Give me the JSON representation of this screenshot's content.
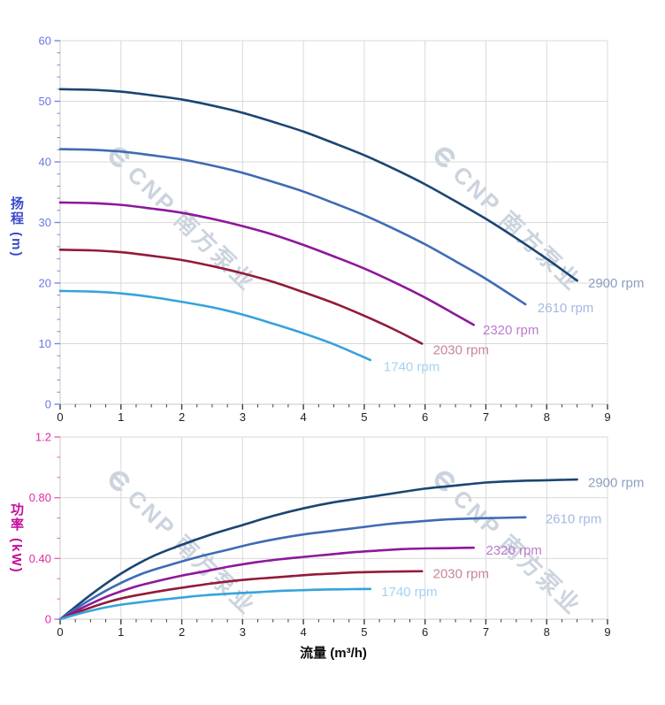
{
  "watermark": {
    "text": "CNP 南方泵业"
  },
  "chart_data": [
    {
      "name": "head-curve-chart",
      "type": "line",
      "title": "",
      "xlabel": "流量 (m³/h)",
      "ylabel": "扬程 (m)",
      "xlim": [
        0,
        9
      ],
      "ylim": [
        0,
        60
      ],
      "grid": true,
      "legend_position": "inline-right-of-curves",
      "x_ticks": [
        0,
        1,
        2,
        3,
        4,
        5,
        6,
        7,
        8,
        9
      ],
      "x_tick_labels": [
        "0",
        "1",
        "2",
        "3",
        "4",
        "5",
        "6",
        "7",
        "8",
        "9"
      ],
      "x_minor_per": 4,
      "y_ticks": [
        0,
        10,
        20,
        30,
        40,
        50,
        60
      ],
      "y_tick_labels": [
        "0",
        "10",
        "20",
        "30",
        "40",
        "50",
        "60"
      ],
      "y_minor_per": 5,
      "style": {
        "grid": "#d9d9d9",
        "axis_line": "#d2d2d2",
        "x_tick": "#3c3c3c",
        "x_label": "#1f1f1f",
        "y_tick": "#7b86e0",
        "y_label": "#6b77e2",
        "y_title": "#3a48cc"
      },
      "series": [
        {
          "name": "2900 rpm",
          "color": "#1a4672",
          "label_color": "#8a9fc0",
          "label_at": [
            8.68,
            20.0
          ],
          "points": [
            [
              0,
              52
            ],
            [
              0.5,
              51.9
            ],
            [
              1,
              51.6
            ],
            [
              1.5,
              51.0
            ],
            [
              2,
              50.3
            ],
            [
              2.5,
              49.3
            ],
            [
              3,
              48.1
            ],
            [
              3.5,
              46.6
            ],
            [
              4,
              45.0
            ],
            [
              4.5,
              43.1
            ],
            [
              5,
              41.1
            ],
            [
              5.5,
              38.8
            ],
            [
              6,
              36.3
            ],
            [
              6.5,
              33.5
            ],
            [
              7,
              30.6
            ],
            [
              7.5,
              27.4
            ],
            [
              8,
              24.0
            ],
            [
              8.5,
              20.4
            ]
          ]
        },
        {
          "name": "2610 rpm",
          "color": "#3e6bb5",
          "label_color": "#a5b9e2",
          "label_at": [
            7.85,
            15.9
          ],
          "points": [
            [
              0,
              42.1
            ],
            [
              0.5,
              42.0
            ],
            [
              1,
              41.7
            ],
            [
              1.5,
              41.1
            ],
            [
              2,
              40.4
            ],
            [
              2.5,
              39.4
            ],
            [
              3,
              38.2
            ],
            [
              3.5,
              36.7
            ],
            [
              4,
              35.1
            ],
            [
              4.5,
              33.2
            ],
            [
              5,
              31.2
            ],
            [
              5.5,
              28.9
            ],
            [
              6,
              26.4
            ],
            [
              6.5,
              23.6
            ],
            [
              7,
              20.7
            ],
            [
              7.65,
              16.5
            ]
          ]
        },
        {
          "name": "2320 rpm",
          "color": "#8d189b",
          "label_color": "#bd7bcc",
          "label_at": [
            6.95,
            12.3
          ],
          "points": [
            [
              0,
              33.3
            ],
            [
              0.5,
              33.2
            ],
            [
              1,
              32.9
            ],
            [
              1.5,
              32.3
            ],
            [
              2,
              31.6
            ],
            [
              2.5,
              30.6
            ],
            [
              3,
              29.4
            ],
            [
              3.5,
              28.0
            ],
            [
              4,
              26.3
            ],
            [
              4.5,
              24.4
            ],
            [
              5,
              22.4
            ],
            [
              5.5,
              20.1
            ],
            [
              6,
              17.6
            ],
            [
              6.5,
              14.8
            ],
            [
              6.8,
              13.1
            ]
          ]
        },
        {
          "name": "2030 rpm",
          "color": "#921b39",
          "label_color": "#c58794",
          "label_at": [
            6.13,
            9.0
          ],
          "points": [
            [
              0,
              25.5
            ],
            [
              0.5,
              25.4
            ],
            [
              1,
              25.1
            ],
            [
              1.5,
              24.5
            ],
            [
              2,
              23.8
            ],
            [
              2.5,
              22.8
            ],
            [
              3,
              21.6
            ],
            [
              3.5,
              20.2
            ],
            [
              4,
              18.5
            ],
            [
              4.5,
              16.7
            ],
            [
              5,
              14.6
            ],
            [
              5.5,
              12.3
            ],
            [
              5.95,
              10.0
            ]
          ]
        },
        {
          "name": "1740 rpm",
          "color": "#35a3dc",
          "label_color": "#a3d3f0",
          "label_at": [
            5.32,
            6.2
          ],
          "points": [
            [
              0,
              18.7
            ],
            [
              0.5,
              18.6
            ],
            [
              1,
              18.3
            ],
            [
              1.5,
              17.7
            ],
            [
              2,
              16.9
            ],
            [
              2.5,
              16.0
            ],
            [
              3,
              14.8
            ],
            [
              3.5,
              13.3
            ],
            [
              4,
              11.7
            ],
            [
              4.5,
              9.9
            ],
            [
              5.1,
              7.3
            ]
          ]
        }
      ]
    },
    {
      "name": "power-curve-chart",
      "type": "line",
      "title": "",
      "xlabel": "流量 (m³/h)",
      "ylabel": "功率 (kW)",
      "xlim": [
        0,
        9
      ],
      "ylim": [
        0,
        1.2
      ],
      "grid": true,
      "legend_position": "inline-right-of-curves",
      "x_ticks": [
        0,
        1,
        2,
        3,
        4,
        5,
        6,
        7,
        8,
        9
      ],
      "x_tick_labels": [
        "0",
        "1",
        "2",
        "3",
        "4",
        "5",
        "6",
        "7",
        "8",
        "9"
      ],
      "x_minor_per": 4,
      "y_ticks": [
        0,
        0.4,
        0.8,
        1.2
      ],
      "y_tick_labels": [
        "0",
        "0.40",
        "0.80",
        "1.2"
      ],
      "y_minor_per": 3,
      "style": {
        "grid": "#d9d9d9",
        "axis_line": "#d2d2d2",
        "x_tick": "#3c3c3c",
        "x_label": "#1f1f1f",
        "y_tick": "#ea5fbe",
        "y_label": "#df2aa6",
        "y_title": "#c40d9b"
      },
      "series": [
        {
          "name": "2900 rpm",
          "color": "#1a4672",
          "label_color": "#8a9fc0",
          "label_at": [
            8.68,
            0.9
          ],
          "points": [
            [
              0,
              0
            ],
            [
              0.5,
              0.16
            ],
            [
              1,
              0.3
            ],
            [
              1.5,
              0.41
            ],
            [
              2,
              0.49
            ],
            [
              2.5,
              0.56
            ],
            [
              3,
              0.62
            ],
            [
              3.5,
              0.68
            ],
            [
              4,
              0.73
            ],
            [
              4.5,
              0.77
            ],
            [
              5,
              0.8
            ],
            [
              5.5,
              0.83
            ],
            [
              6,
              0.86
            ],
            [
              6.5,
              0.88
            ],
            [
              7,
              0.9
            ],
            [
              7.5,
              0.91
            ],
            [
              8,
              0.915
            ],
            [
              8.5,
              0.92
            ]
          ]
        },
        {
          "name": "2610 rpm",
          "color": "#3e6bb5",
          "label_color": "#a5b9e2",
          "label_at": [
            7.98,
            0.66
          ],
          "points": [
            [
              0,
              0
            ],
            [
              0.45,
              0.117
            ],
            [
              0.9,
              0.219
            ],
            [
              1.35,
              0.3
            ],
            [
              1.8,
              0.357
            ],
            [
              2.25,
              0.408
            ],
            [
              2.7,
              0.452
            ],
            [
              3.15,
              0.496
            ],
            [
              3.6,
              0.532
            ],
            [
              4.05,
              0.561
            ],
            [
              4.5,
              0.583
            ],
            [
              4.95,
              0.605
            ],
            [
              5.4,
              0.627
            ],
            [
              5.85,
              0.642
            ],
            [
              6.3,
              0.656
            ],
            [
              6.75,
              0.663
            ],
            [
              7.2,
              0.667
            ],
            [
              7.65,
              0.671
            ]
          ]
        },
        {
          "name": "2320 rpm",
          "color": "#8d189b",
          "label_color": "#bd7bcc",
          "label_at": [
            7.0,
            0.455
          ],
          "points": [
            [
              0,
              0
            ],
            [
              0.4,
              0.082
            ],
            [
              0.8,
              0.154
            ],
            [
              1.2,
              0.21
            ],
            [
              1.6,
              0.251
            ],
            [
              2,
              0.287
            ],
            [
              2.4,
              0.317
            ],
            [
              2.8,
              0.348
            ],
            [
              3.2,
              0.374
            ],
            [
              3.6,
              0.394
            ],
            [
              4,
              0.41
            ],
            [
              4.4,
              0.425
            ],
            [
              4.8,
              0.44
            ],
            [
              5.2,
              0.451
            ],
            [
              5.6,
              0.461
            ],
            [
              6,
              0.466
            ],
            [
              6.4,
              0.468
            ],
            [
              6.8,
              0.471
            ]
          ]
        },
        {
          "name": "2030 rpm",
          "color": "#921b39",
          "label_color": "#c58794",
          "label_at": [
            6.13,
            0.3
          ],
          "points": [
            [
              0,
              0
            ],
            [
              0.35,
              0.055
            ],
            [
              0.7,
              0.103
            ],
            [
              1.05,
              0.141
            ],
            [
              1.4,
              0.168
            ],
            [
              1.75,
              0.192
            ],
            [
              2.1,
              0.213
            ],
            [
              2.45,
              0.233
            ],
            [
              2.8,
              0.25
            ],
            [
              3.15,
              0.264
            ],
            [
              3.5,
              0.274
            ],
            [
              3.85,
              0.285
            ],
            [
              4.2,
              0.295
            ],
            [
              4.55,
              0.302
            ],
            [
              4.9,
              0.309
            ],
            [
              5.25,
              0.312
            ],
            [
              5.6,
              0.314
            ],
            [
              5.95,
              0.316
            ]
          ]
        },
        {
          "name": "1740 rpm",
          "color": "#35a3dc",
          "label_color": "#a3d3f0",
          "label_at": [
            5.28,
            0.182
          ],
          "points": [
            [
              0,
              0
            ],
            [
              0.3,
              0.035
            ],
            [
              0.6,
              0.065
            ],
            [
              0.9,
              0.089
            ],
            [
              1.2,
              0.106
            ],
            [
              1.5,
              0.121
            ],
            [
              1.8,
              0.134
            ],
            [
              2.1,
              0.147
            ],
            [
              2.4,
              0.158
            ],
            [
              2.7,
              0.166
            ],
            [
              3,
              0.173
            ],
            [
              3.3,
              0.179
            ],
            [
              3.6,
              0.186
            ],
            [
              3.9,
              0.19
            ],
            [
              4.2,
              0.194
            ],
            [
              4.5,
              0.196
            ],
            [
              4.8,
              0.198
            ],
            [
              5.1,
              0.199
            ]
          ]
        }
      ]
    }
  ]
}
